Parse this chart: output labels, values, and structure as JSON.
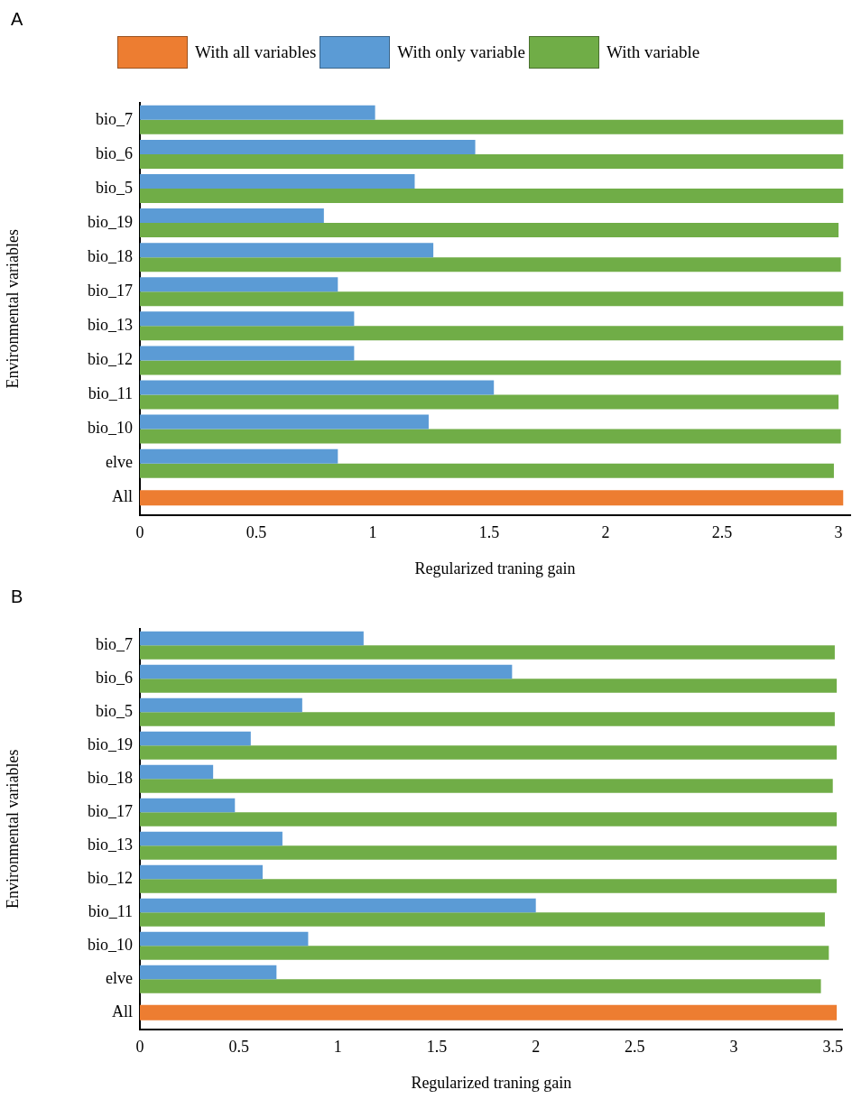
{
  "chart_data": [
    {
      "type": "bar",
      "orientation": "horizontal",
      "title": "A",
      "xlabel": "Regularized traning gain",
      "ylabel": "Environmental variables",
      "legend": "top",
      "grid": false,
      "categories": [
        "bio_7",
        "bio_6",
        "bio_5",
        "bio_19",
        "bio_18",
        "bio_17",
        "bio_13",
        "bio_12",
        "bio_11",
        "bio_10",
        "elve",
        "All"
      ],
      "series": [
        {
          "name": "With all variables",
          "color": "#ed7d31",
          "values": [
            null,
            null,
            null,
            null,
            null,
            null,
            null,
            null,
            null,
            null,
            null,
            3.02
          ]
        },
        {
          "name": "With only variable",
          "color": "#5b9bd5",
          "values": [
            1.01,
            1.44,
            1.18,
            0.79,
            1.26,
            0.85,
            0.92,
            0.92,
            1.52,
            1.24,
            0.85,
            null
          ]
        },
        {
          "name": "With variable",
          "color": "#70ad47",
          "values": [
            3.02,
            3.02,
            3.02,
            3.0,
            3.01,
            3.02,
            3.02,
            3.01,
            3.0,
            3.01,
            2.98,
            null
          ]
        }
      ],
      "xlim": [
        0,
        3.05
      ],
      "xticks": [
        0,
        0.5,
        1,
        1.5,
        2,
        2.5,
        3
      ]
    },
    {
      "type": "bar",
      "orientation": "horizontal",
      "title": "B",
      "xlabel": "Regularized traning gain",
      "ylabel": "Environmental variables",
      "grid": false,
      "categories": [
        "bio_7",
        "bio_6",
        "bio_5",
        "bio_19",
        "bio_18",
        "bio_17",
        "bio_13",
        "bio_12",
        "bio_11",
        "bio_10",
        "elve",
        "All"
      ],
      "series": [
        {
          "color": "#ed7d31",
          "values": [
            null,
            null,
            null,
            null,
            null,
            null,
            null,
            null,
            null,
            null,
            null,
            3.52
          ]
        },
        {
          "color": "#5b9bd5",
          "values": [
            1.13,
            1.88,
            0.82,
            0.56,
            0.37,
            0.48,
            0.72,
            0.62,
            2.0,
            0.85,
            0.69,
            null
          ]
        },
        {
          "color": "#70ad47",
          "values": [
            3.51,
            3.52,
            3.51,
            3.52,
            3.5,
            3.52,
            3.52,
            3.52,
            3.46,
            3.48,
            3.44,
            null
          ]
        }
      ],
      "xlim": [
        0,
        3.55
      ],
      "xticks": [
        0,
        0.5,
        1,
        1.5,
        2,
        2.5,
        3,
        3.5
      ]
    }
  ]
}
